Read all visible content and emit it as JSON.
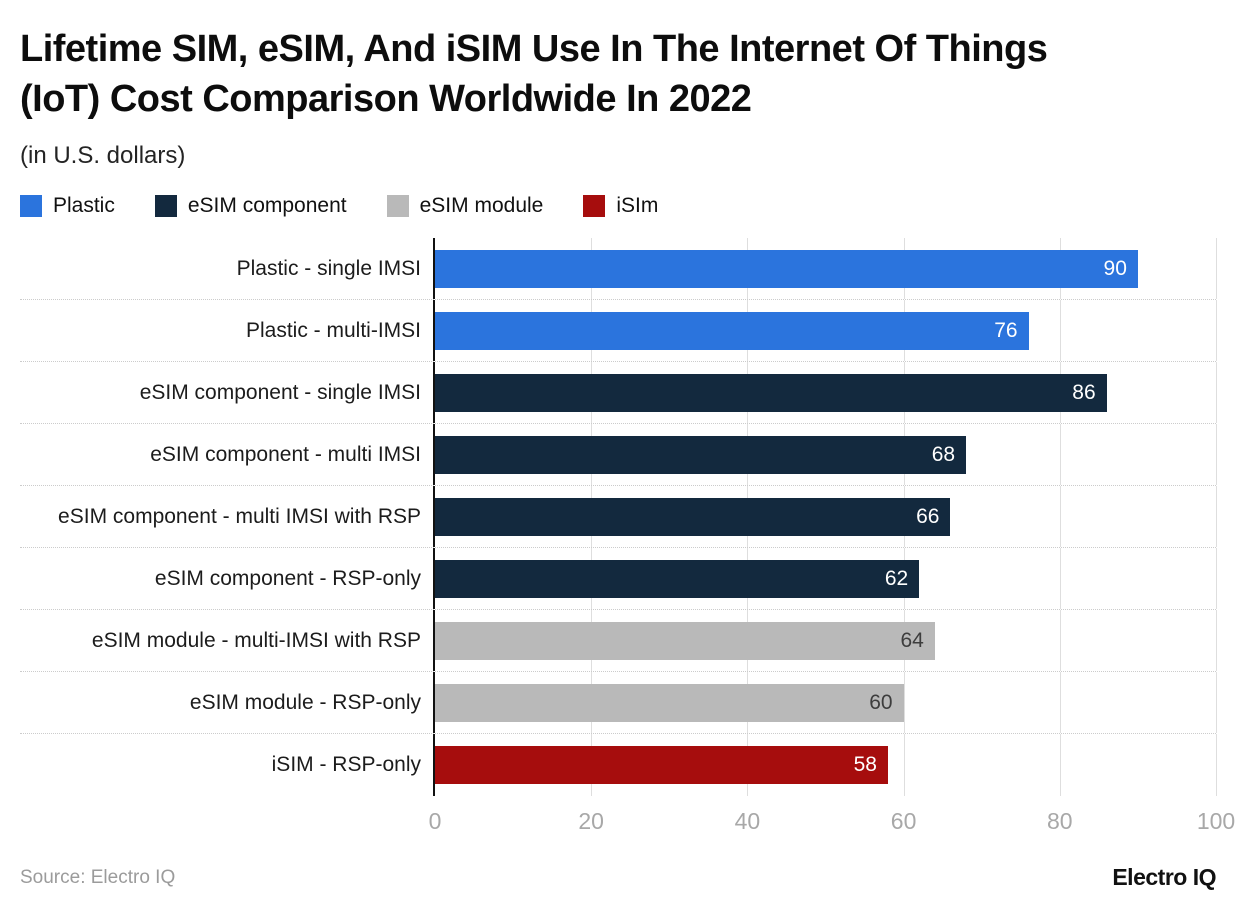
{
  "header": {
    "title_line1": "Lifetime SIM, eSIM, And iSIM Use In The Internet Of Things",
    "title_line2": "(IoT) Cost Comparison Worldwide In 2022",
    "subtitle": "(in U.S. dollars)"
  },
  "footer": {
    "source": "Source: Electro IQ",
    "brand": "Electro IQ"
  },
  "chart_data": {
    "type": "bar",
    "orientation": "horizontal",
    "title": "Lifetime SIM, eSIM, And iSIM Use In The Internet Of Things (IoT) Cost Comparison Worldwide In 2022",
    "subtitle": "(in U.S. dollars)",
    "xlim": [
      0,
      100
    ],
    "xticks": [
      0,
      20,
      40,
      60,
      80,
      100
    ],
    "grid": "vertical-solid-plus-dotted-row-separators",
    "legend_position": "top",
    "legend": [
      {
        "label": "Plastic",
        "color": "#2b74dd"
      },
      {
        "label": "eSIM component",
        "color": "#13293e"
      },
      {
        "label": "eSIM module",
        "color": "#b9b9b9"
      },
      {
        "label": "iSIm",
        "color": "#a60d0d"
      }
    ],
    "bars": [
      {
        "label": "Plastic - single IMSI",
        "series": "Plastic",
        "value": 90,
        "color": "#2b74dd",
        "value_color": "#ffffff"
      },
      {
        "label": "Plastic - multi-IMSI",
        "series": "Plastic",
        "value": 76,
        "color": "#2b74dd",
        "value_color": "#ffffff"
      },
      {
        "label": "eSIM component - single IMSI",
        "series": "eSIM component",
        "value": 86,
        "color": "#13293e",
        "value_color": "#ffffff"
      },
      {
        "label": "eSIM component - multi IMSI",
        "series": "eSIM component",
        "value": 68,
        "color": "#13293e",
        "value_color": "#ffffff"
      },
      {
        "label": "eSIM component - multi IMSI with RSP",
        "series": "eSIM component",
        "value": 66,
        "color": "#13293e",
        "value_color": "#ffffff"
      },
      {
        "label": "eSIM component - RSP-only",
        "series": "eSIM component",
        "value": 62,
        "color": "#13293e",
        "value_color": "#ffffff"
      },
      {
        "label": "eSIM module - multi-IMSI with RSP",
        "series": "eSIM module",
        "value": 64,
        "color": "#b9b9b9",
        "value_color": "#3d3d3d"
      },
      {
        "label": "eSIM module - RSP-only",
        "series": "eSIM module",
        "value": 60,
        "color": "#b9b9b9",
        "value_color": "#3d3d3d"
      },
      {
        "label": "iSIM - RSP-only",
        "series": "iSIM",
        "value": 58,
        "color": "#a60d0d",
        "value_color": "#ffffff"
      }
    ]
  }
}
